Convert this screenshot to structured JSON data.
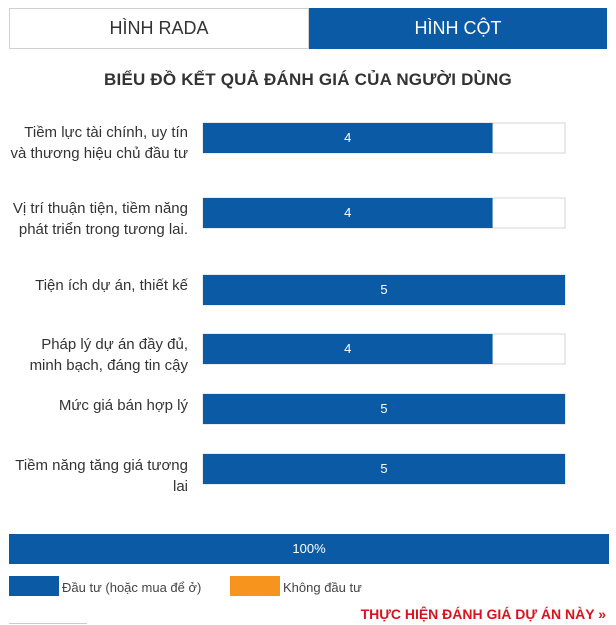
{
  "tabs": {
    "radar_label": "HÌNH RADA",
    "bar_label": "HÌNH CỘT"
  },
  "chart_data": {
    "type": "bar",
    "orientation": "horizontal",
    "title": "BIỂU ĐỒ KẾT QUẢ ĐÁNH GIÁ CỦA NGƯỜI DÙNG",
    "categories": [
      "Tiềm lực tài chính, uy tín và thương hiệu chủ đầu tư",
      "Vị trí thuận tiện, tiềm năng phát triển trong tương lai.",
      "Tiện ích dự án, thiết kế",
      "Pháp lý dự án đầy đủ, minh bạch, đáng tin cậy",
      "Mức giá bán hợp lý",
      "Tiềm năng tăng giá tương lai"
    ],
    "values": [
      4,
      4,
      5,
      4,
      5,
      5
    ],
    "value_labels": [
      "4",
      "4",
      "5",
      "4",
      "5",
      "5"
    ],
    "xlim": [
      0,
      5
    ],
    "grid": false,
    "bar_color": "#0a5aa5",
    "track_color": "#ffffff"
  },
  "summary": {
    "label": "100%",
    "series": [
      {
        "name": "Đầu tư (hoặc mua để ở)",
        "value": 100,
        "color": "#0a5aa5"
      },
      {
        "name": "Không đầu tư",
        "value": 0,
        "color": "#f7941d"
      }
    ]
  },
  "cta": {
    "label": "THỰC HIỆN ĐÁNH GIÁ DỰ ÁN NÀY »"
  },
  "colors": {
    "accent": "#0a5aa5",
    "orange": "#f7941d",
    "cta": "#d7141e"
  }
}
